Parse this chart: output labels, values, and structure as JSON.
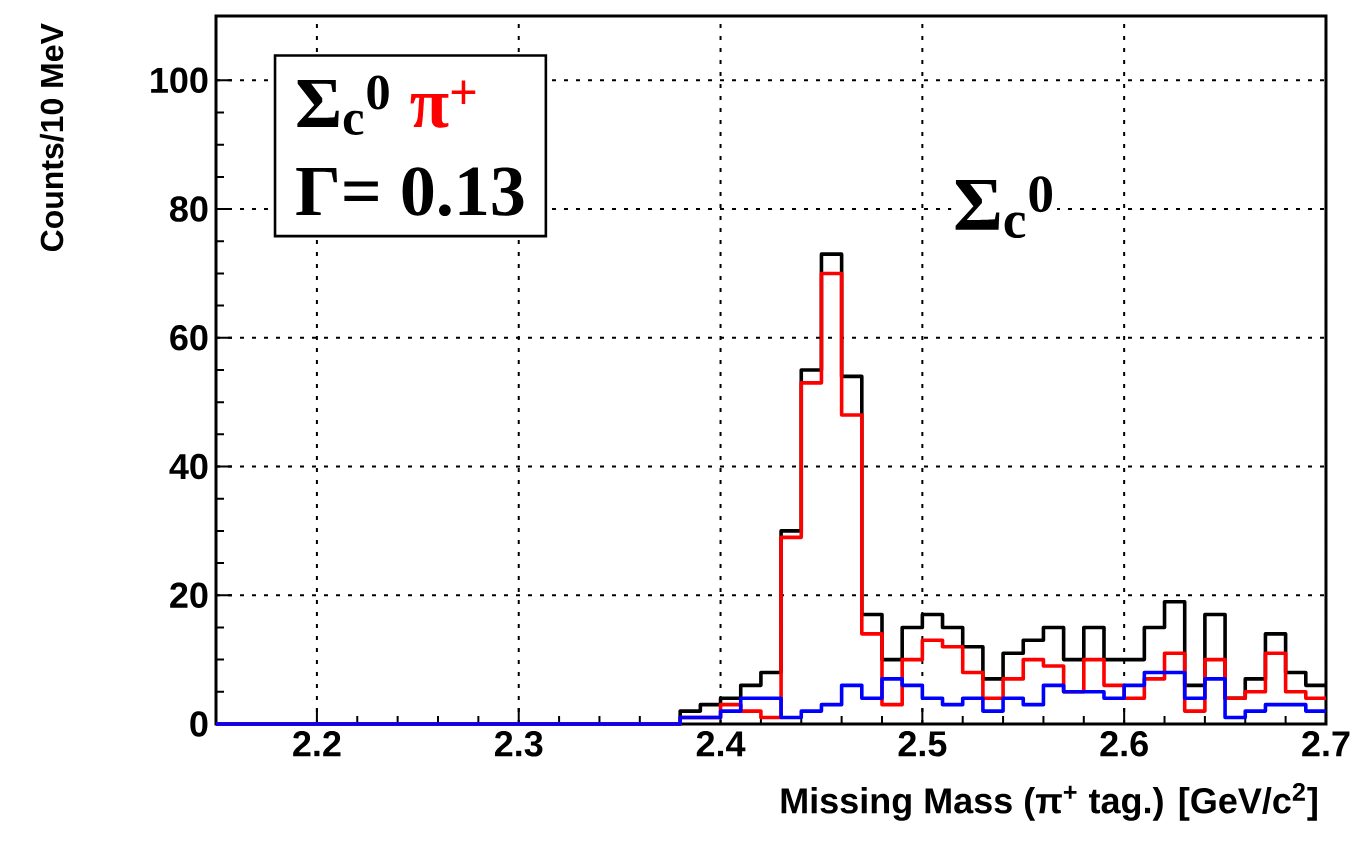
{
  "chart_data": {
    "type": "histogram",
    "xlabel": "Missing Mass (π$^{+}$ tag.) [GeV/c$^{2}$]",
    "ylabel": "Counts/10 MeV",
    "bins": [
      2.15,
      2.16,
      2.17,
      2.18,
      2.19,
      2.2,
      2.21,
      2.22,
      2.23,
      2.24,
      2.25,
      2.26,
      2.27,
      2.28,
      2.29,
      2.3,
      2.31,
      2.32,
      2.33,
      2.34,
      2.35,
      2.36,
      2.37,
      2.38,
      2.39,
      2.4,
      2.41,
      2.42,
      2.43,
      2.44,
      2.45,
      2.46,
      2.47,
      2.48,
      2.49,
      2.5,
      2.51,
      2.52,
      2.53,
      2.54,
      2.55,
      2.56,
      2.57,
      2.58,
      2.59,
      2.6,
      2.61,
      2.62,
      2.63,
      2.64,
      2.65,
      2.66,
      2.67,
      2.68,
      2.69,
      2.7
    ],
    "series": [
      {
        "color": "#000000",
        "values": [
          0,
          0,
          0,
          0,
          0,
          0,
          0,
          0,
          0,
          0,
          0,
          0,
          0,
          0,
          0,
          0,
          0,
          0,
          0,
          0,
          0,
          0,
          0,
          2,
          3,
          4,
          6,
          8,
          30,
          55,
          73,
          54,
          17,
          10,
          15,
          17,
          15,
          12,
          7,
          11,
          13,
          15,
          10,
          15,
          10,
          10,
          15,
          19,
          6,
          17,
          4,
          7,
          14,
          8,
          6
        ]
      },
      {
        "color": "#ff0000",
        "values": [
          0,
          0,
          0,
          0,
          0,
          0,
          0,
          0,
          0,
          0,
          0,
          0,
          0,
          0,
          0,
          0,
          0,
          0,
          0,
          0,
          0,
          0,
          0,
          1,
          1,
          3,
          2,
          1,
          29,
          53,
          70,
          48,
          14,
          3,
          10,
          13,
          12,
          8,
          4,
          7,
          10,
          9,
          5,
          10,
          6,
          4,
          7,
          11,
          2,
          10,
          4,
          5,
          11,
          5,
          4
        ]
      },
      {
        "color": "#0000ff",
        "values": [
          0,
          0,
          0,
          0,
          0,
          0,
          0,
          0,
          0,
          0,
          0,
          0,
          0,
          0,
          0,
          0,
          0,
          0,
          0,
          0,
          0,
          0,
          0,
          1,
          1,
          2,
          4,
          4,
          1,
          2,
          3,
          6,
          4,
          7,
          6,
          4,
          3,
          4,
          2,
          4,
          3,
          6,
          5,
          5,
          4,
          6,
          8,
          8,
          4,
          7,
          1,
          2,
          3,
          3,
          2
        ]
      }
    ],
    "xlim": [
      2.15,
      2.7
    ],
    "xticks": [
      2.2,
      2.3,
      2.4,
      2.5,
      2.6,
      2.7
    ],
    "ylim": [
      0,
      110
    ],
    "yticks": [
      0,
      20,
      40,
      60,
      80,
      100
    ],
    "grid": true,
    "annotations": [
      "Σ$_{c}$$^{0}$",
      "π$^{+}$",
      "Γ= 0.13",
      "Σ$_{c}$$^{0}$"
    ]
  }
}
